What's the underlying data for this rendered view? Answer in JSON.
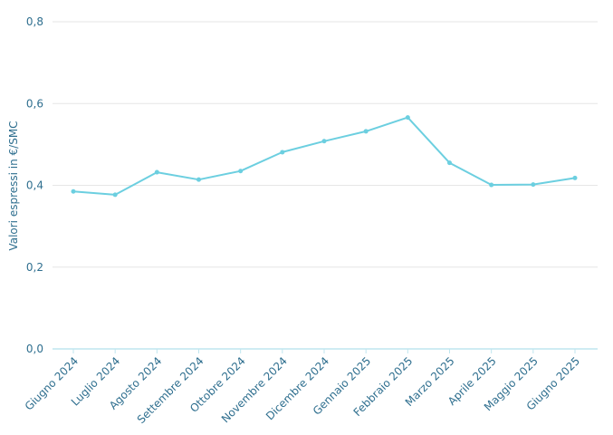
{
  "chart_data": {
    "type": "line",
    "title": "",
    "xlabel": "",
    "ylabel": "Valori espressi in €/SMC",
    "categories": [
      "Giugno 2024",
      "Luglio 2024",
      "Agosto 2024",
      "Settembre 2024",
      "Ottobre 2024",
      "Novembre 2024",
      "Dicembre 2024",
      "Gennaio 2025",
      "Febbraio 2025",
      "Marzo 2025",
      "Aprile 2025",
      "Maggio 2025",
      "Giugno 2025"
    ],
    "series": [
      {
        "values": [
          0.385,
          0.377,
          0.432,
          0.414,
          0.435,
          0.481,
          0.508,
          0.532,
          0.566,
          0.455,
          0.401,
          0.402,
          0.418
        ]
      }
    ],
    "ylim": [
      0,
      0.8
    ],
    "yticks": [
      0,
      0.2,
      0.4,
      0.6,
      0.8
    ],
    "ytick_labels": [
      "0,0",
      "0,2",
      "0,4",
      "0,6",
      "0,8"
    ],
    "grid": true,
    "legend": "none",
    "colors": {
      "line": "#6ccfe0",
      "text": "#2f6f8f",
      "grid": "#e6e6e6",
      "axis": "#bfe6ef"
    }
  }
}
